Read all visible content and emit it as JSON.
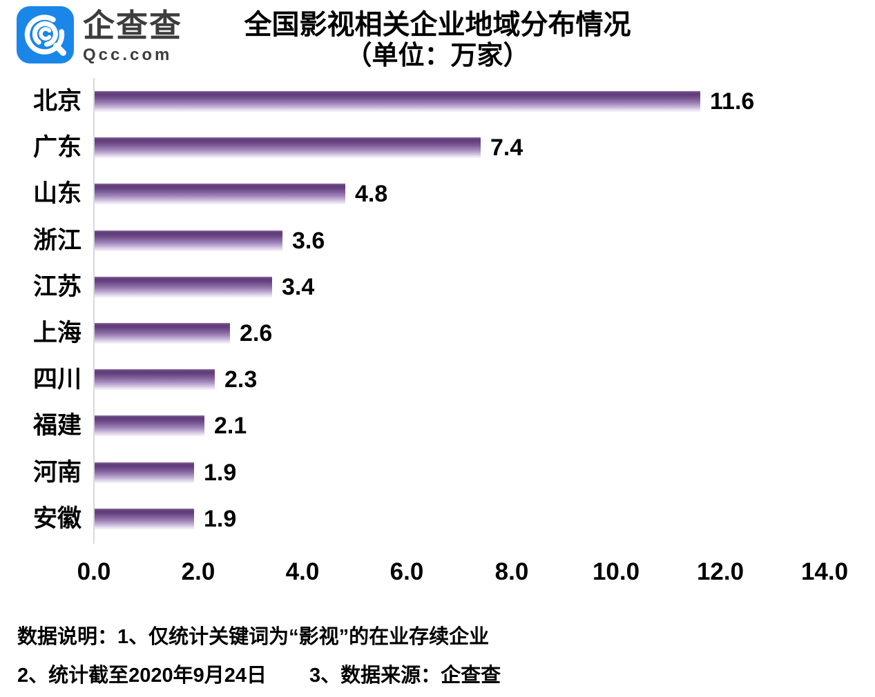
{
  "logo": {
    "name": "企查查",
    "domain": "Qcc.com",
    "brand_color": "#1a86e8"
  },
  "chart_data": {
    "type": "bar",
    "orientation": "horizontal",
    "title": "全国影视相关企业地域分布情况",
    "subtitle": "（单位：万家）",
    "categories": [
      "北京",
      "广东",
      "山东",
      "浙江",
      "江苏",
      "上海",
      "四川",
      "福建",
      "河南",
      "安徽"
    ],
    "values": [
      11.6,
      7.4,
      4.8,
      3.6,
      3.4,
      2.6,
      2.3,
      2.1,
      1.9,
      1.9
    ],
    "value_labels": [
      "11.6",
      "7.4",
      "4.8",
      "3.6",
      "3.4",
      "2.6",
      "2.3",
      "2.1",
      "1.9",
      "1.9"
    ],
    "xlim": [
      0,
      14
    ],
    "xtick_values": [
      0,
      2,
      4,
      6,
      8,
      10,
      12,
      14
    ],
    "xtick_labels": [
      "0.0",
      "2.0",
      "4.0",
      "6.0",
      "8.0",
      "10.0",
      "12.0",
      "14.0"
    ],
    "grid": false,
    "legend": "none",
    "bar_color_dark": "#5f3c79",
    "bar_color_light": "#f6f2fa",
    "axis_color": "#d8d7da"
  },
  "footer": {
    "note1": "数据说明：1、仅统计关键词为“影视”的在业存续企业",
    "note2": "2、统计截至2020年9月24日",
    "note3": "3、数据来源：企查查"
  }
}
